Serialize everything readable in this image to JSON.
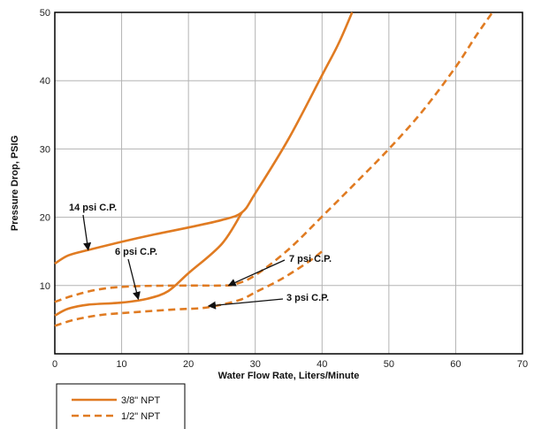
{
  "chart_data": {
    "type": "line",
    "xlabel": "Water Flow Rate, Liters/Minute",
    "ylabel": "Pressure Drop, PSIG",
    "xlim": [
      0,
      70
    ],
    "ylim": [
      0,
      50
    ],
    "xticks": [
      0,
      10,
      20,
      30,
      40,
      50,
      60,
      70
    ],
    "yticks": [
      10,
      20,
      30,
      40,
      50
    ],
    "grid": true,
    "legend_placement": "bottom-left",
    "colors": {
      "curve": "#e07b22"
    },
    "legend": [
      {
        "label": "3/8\" NPT",
        "style": "solid"
      },
      {
        "label": "1/2\" NPT",
        "style": "dashed"
      }
    ],
    "series": [
      {
        "group": 0,
        "style": "solid",
        "points": [
          [
            0,
            13.2
          ],
          [
            2,
            14.4
          ],
          [
            5,
            15.2
          ],
          [
            10,
            16.4
          ],
          [
            15,
            17.5
          ],
          [
            20,
            18.5
          ],
          [
            25,
            19.6
          ],
          [
            28,
            20.7
          ],
          [
            30,
            23.5
          ],
          [
            35,
            31.5
          ],
          [
            40,
            40.8
          ],
          [
            42.5,
            45.5
          ],
          [
            44.5,
            50
          ]
        ]
      },
      {
        "group": 0,
        "style": "solid",
        "points": [
          [
            0,
            5.6
          ],
          [
            2,
            6.6
          ],
          [
            5,
            7.2
          ],
          [
            10,
            7.5
          ],
          [
            14,
            8.1
          ],
          [
            17,
            9.2
          ],
          [
            20,
            11.8
          ],
          [
            25,
            16.1
          ],
          [
            28,
            20.7
          ]
        ]
      },
      {
        "group": 1,
        "style": "dashed",
        "points": [
          [
            0,
            7.6
          ],
          [
            3,
            8.6
          ],
          [
            7,
            9.5
          ],
          [
            12,
            9.9
          ],
          [
            20,
            10.0
          ],
          [
            25,
            10.0
          ],
          [
            27,
            10.2
          ],
          [
            30,
            11.5
          ],
          [
            35,
            15.3
          ],
          [
            40,
            20.1
          ],
          [
            45,
            25.0
          ],
          [
            50,
            30.0
          ],
          [
            55,
            35.5
          ],
          [
            60,
            42.0
          ],
          [
            63,
            46.5
          ],
          [
            65.5,
            50
          ]
        ]
      },
      {
        "group": 1,
        "style": "dashed",
        "points": [
          [
            0,
            4.1
          ],
          [
            3,
            5.0
          ],
          [
            7,
            5.7
          ],
          [
            12,
            6.1
          ],
          [
            18,
            6.5
          ],
          [
            22,
            6.7
          ],
          [
            25,
            7.2
          ],
          [
            28,
            8.0
          ],
          [
            30,
            9.0
          ],
          [
            34,
            11.0
          ],
          [
            38,
            13.5
          ],
          [
            40,
            15.0
          ]
        ]
      }
    ],
    "annotations": [
      {
        "text": "14 psi C.P.",
        "arrow_to": [
          5,
          15.2
        ]
      },
      {
        "text": "6 psi C.P.",
        "arrow_to": [
          12.5,
          8.0
        ]
      },
      {
        "text": "7 psi C.P.",
        "arrow_to": [
          26,
          10.0
        ]
      },
      {
        "text": "3 psi C.P.",
        "arrow_to": [
          23,
          7.0
        ]
      }
    ]
  }
}
